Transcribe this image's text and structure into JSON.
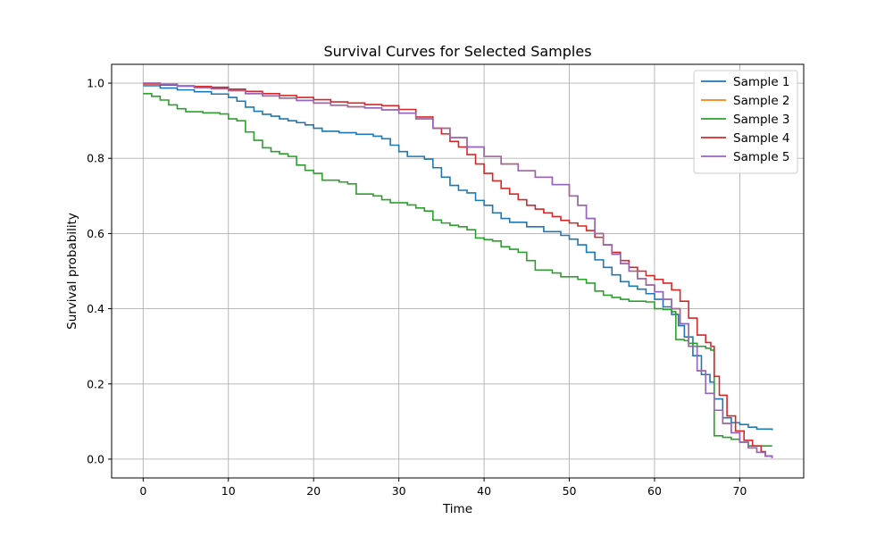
{
  "chart_data": {
    "type": "line",
    "step": true,
    "title": "Survival Curves for Selected Samples",
    "xlabel": "Time",
    "ylabel": "Survival probability",
    "xlim": [
      -3.7,
      77.5
    ],
    "ylim": [
      -0.05,
      1.05
    ],
    "xticks": [
      0,
      10,
      20,
      30,
      40,
      50,
      60,
      70
    ],
    "yticks": [
      0.0,
      0.2,
      0.4,
      0.6,
      0.8,
      1.0
    ],
    "ytick_labels": [
      "0.0",
      "0.2",
      "0.4",
      "0.6",
      "0.8",
      "1.0"
    ],
    "grid": true,
    "legend": "top-right",
    "series": [
      {
        "name": "Sample 1",
        "color": "#1f77b4",
        "points": [
          [
            0,
            0.993
          ],
          [
            2,
            0.987
          ],
          [
            4,
            0.982
          ],
          [
            6,
            0.977
          ],
          [
            8,
            0.971
          ],
          [
            10,
            0.962
          ],
          [
            11,
            0.952
          ],
          [
            12,
            0.936
          ],
          [
            13,
            0.925
          ],
          [
            14,
            0.917
          ],
          [
            15,
            0.912
          ],
          [
            16,
            0.905
          ],
          [
            17,
            0.9
          ],
          [
            18,
            0.895
          ],
          [
            19,
            0.889
          ],
          [
            20,
            0.88
          ],
          [
            21,
            0.872
          ],
          [
            23,
            0.868
          ],
          [
            25,
            0.864
          ],
          [
            27,
            0.859
          ],
          [
            28,
            0.852
          ],
          [
            29,
            0.835
          ],
          [
            30,
            0.818
          ],
          [
            31,
            0.805
          ],
          [
            33,
            0.798
          ],
          [
            34,
            0.775
          ],
          [
            35,
            0.75
          ],
          [
            36,
            0.728
          ],
          [
            37,
            0.715
          ],
          [
            38,
            0.708
          ],
          [
            39,
            0.688
          ],
          [
            40,
            0.675
          ],
          [
            41,
            0.655
          ],
          [
            42,
            0.64
          ],
          [
            43,
            0.63
          ],
          [
            45,
            0.618
          ],
          [
            47,
            0.605
          ],
          [
            49,
            0.595
          ],
          [
            50,
            0.585
          ],
          [
            51,
            0.57
          ],
          [
            52,
            0.55
          ],
          [
            53,
            0.53
          ],
          [
            54,
            0.51
          ],
          [
            55,
            0.49
          ],
          [
            56,
            0.472
          ],
          [
            57,
            0.46
          ],
          [
            58,
            0.452
          ],
          [
            59,
            0.44
          ],
          [
            60,
            0.425
          ],
          [
            61,
            0.405
          ],
          [
            62,
            0.385
          ],
          [
            62.8,
            0.355
          ],
          [
            63.5,
            0.325
          ],
          [
            64.5,
            0.275
          ],
          [
            65.5,
            0.225
          ],
          [
            66.5,
            0.205
          ],
          [
            67,
            0.16
          ],
          [
            68,
            0.11
          ],
          [
            69,
            0.097
          ],
          [
            70,
            0.092
          ],
          [
            71,
            0.085
          ],
          [
            72,
            0.08
          ],
          [
            73.8,
            0.077
          ]
        ]
      },
      {
        "name": "Sample 2",
        "color": "#ff7f0e",
        "points": [
          [
            0,
            1.0
          ],
          [
            2,
            0.997
          ],
          [
            4,
            0.992
          ],
          [
            6,
            0.988
          ],
          [
            8,
            0.985
          ],
          [
            10,
            0.98
          ],
          [
            12,
            0.972
          ],
          [
            14,
            0.966
          ],
          [
            16,
            0.96
          ],
          [
            18,
            0.954
          ],
          [
            20,
            0.947
          ],
          [
            22,
            0.941
          ],
          [
            24,
            0.937
          ],
          [
            26,
            0.934
          ],
          [
            28,
            0.929
          ],
          [
            30,
            0.92
          ],
          [
            32,
            0.905
          ],
          [
            34,
            0.88
          ],
          [
            36,
            0.855
          ],
          [
            38,
            0.83
          ],
          [
            40,
            0.805
          ],
          [
            42,
            0.785
          ],
          [
            44,
            0.767
          ],
          [
            46,
            0.75
          ],
          [
            48,
            0.73
          ],
          [
            50,
            0.7
          ],
          [
            51,
            0.675
          ],
          [
            52,
            0.64
          ],
          [
            53,
            0.6
          ],
          [
            54,
            0.57
          ],
          [
            55,
            0.545
          ],
          [
            56,
            0.52
          ],
          [
            57,
            0.5
          ],
          [
            58,
            0.48
          ],
          [
            59,
            0.463
          ],
          [
            60,
            0.445
          ],
          [
            61,
            0.425
          ],
          [
            62,
            0.4
          ],
          [
            63,
            0.36
          ],
          [
            64,
            0.3
          ],
          [
            65,
            0.235
          ],
          [
            66,
            0.175
          ],
          [
            67,
            0.13
          ],
          [
            68,
            0.095
          ],
          [
            69,
            0.07
          ],
          [
            70,
            0.045
          ],
          [
            71,
            0.03
          ],
          [
            72,
            0.018
          ],
          [
            73,
            0.008
          ],
          [
            73.8,
            0.003
          ]
        ]
      },
      {
        "name": "Sample 3",
        "color": "#2ca02c",
        "points": [
          [
            0,
            0.972
          ],
          [
            1,
            0.965
          ],
          [
            2,
            0.955
          ],
          [
            3,
            0.942
          ],
          [
            4,
            0.932
          ],
          [
            5,
            0.924
          ],
          [
            7,
            0.921
          ],
          [
            9,
            0.918
          ],
          [
            10,
            0.905
          ],
          [
            11,
            0.9
          ],
          [
            12,
            0.87
          ],
          [
            13,
            0.848
          ],
          [
            14,
            0.828
          ],
          [
            15,
            0.818
          ],
          [
            16,
            0.812
          ],
          [
            17,
            0.805
          ],
          [
            18,
            0.782
          ],
          [
            19,
            0.768
          ],
          [
            20,
            0.76
          ],
          [
            21,
            0.742
          ],
          [
            23,
            0.737
          ],
          [
            24,
            0.732
          ],
          [
            25,
            0.705
          ],
          [
            27,
            0.7
          ],
          [
            28,
            0.69
          ],
          [
            29,
            0.682
          ],
          [
            31,
            0.676
          ],
          [
            32,
            0.668
          ],
          [
            33,
            0.66
          ],
          [
            34,
            0.636
          ],
          [
            35,
            0.628
          ],
          [
            36,
            0.622
          ],
          [
            37,
            0.618
          ],
          [
            38,
            0.61
          ],
          [
            39,
            0.588
          ],
          [
            40,
            0.584
          ],
          [
            41,
            0.58
          ],
          [
            42,
            0.565
          ],
          [
            43,
            0.558
          ],
          [
            44,
            0.55
          ],
          [
            45,
            0.528
          ],
          [
            46,
            0.503
          ],
          [
            48,
            0.495
          ],
          [
            49,
            0.485
          ],
          [
            51,
            0.478
          ],
          [
            52,
            0.468
          ],
          [
            53,
            0.447
          ],
          [
            54,
            0.436
          ],
          [
            55,
            0.43
          ],
          [
            56,
            0.425
          ],
          [
            57,
            0.42
          ],
          [
            59,
            0.418
          ],
          [
            60,
            0.4
          ],
          [
            61,
            0.398
          ],
          [
            62,
            0.392
          ],
          [
            62.5,
            0.318
          ],
          [
            63.5,
            0.315
          ],
          [
            64,
            0.308
          ],
          [
            65,
            0.3
          ],
          [
            66,
            0.295
          ],
          [
            66.6,
            0.29
          ],
          [
            67,
            0.062
          ],
          [
            68,
            0.058
          ],
          [
            69,
            0.053
          ],
          [
            70,
            0.045
          ],
          [
            71,
            0.035
          ],
          [
            73.8,
            0.035
          ]
        ]
      },
      {
        "name": "Sample 4",
        "color": "#d62728",
        "points": [
          [
            0,
            0.998
          ],
          [
            2,
            0.995
          ],
          [
            4,
            0.993
          ],
          [
            6,
            0.991
          ],
          [
            8,
            0.989
          ],
          [
            10,
            0.984
          ],
          [
            12,
            0.978
          ],
          [
            14,
            0.972
          ],
          [
            16,
            0.967
          ],
          [
            18,
            0.962
          ],
          [
            20,
            0.956
          ],
          [
            22,
            0.95
          ],
          [
            24,
            0.947
          ],
          [
            26,
            0.943
          ],
          [
            28,
            0.94
          ],
          [
            30,
            0.93
          ],
          [
            32,
            0.91
          ],
          [
            34,
            0.88
          ],
          [
            35,
            0.865
          ],
          [
            36,
            0.845
          ],
          [
            37,
            0.83
          ],
          [
            38,
            0.81
          ],
          [
            39,
            0.785
          ],
          [
            40,
            0.76
          ],
          [
            41,
            0.74
          ],
          [
            42,
            0.72
          ],
          [
            43,
            0.705
          ],
          [
            44,
            0.69
          ],
          [
            45,
            0.675
          ],
          [
            46,
            0.665
          ],
          [
            47,
            0.655
          ],
          [
            48,
            0.645
          ],
          [
            49,
            0.635
          ],
          [
            50,
            0.628
          ],
          [
            51,
            0.62
          ],
          [
            52,
            0.608
          ],
          [
            53,
            0.59
          ],
          [
            54,
            0.57
          ],
          [
            55,
            0.55
          ],
          [
            56,
            0.528
          ],
          [
            57,
            0.51
          ],
          [
            58,
            0.5
          ],
          [
            59,
            0.488
          ],
          [
            60,
            0.478
          ],
          [
            61,
            0.468
          ],
          [
            62,
            0.45
          ],
          [
            63,
            0.42
          ],
          [
            64,
            0.375
          ],
          [
            65,
            0.33
          ],
          [
            66,
            0.31
          ],
          [
            66.6,
            0.3
          ],
          [
            67,
            0.22
          ],
          [
            67.6,
            0.17
          ],
          [
            68.5,
            0.115
          ],
          [
            69.5,
            0.075
          ],
          [
            70.5,
            0.05
          ],
          [
            71.5,
            0.035
          ],
          [
            72.5,
            0.02
          ],
          [
            73,
            0.008
          ],
          [
            73.8,
            0.003
          ]
        ]
      },
      {
        "name": "Sample 5",
        "color": "#9467bd",
        "points": [
          [
            0,
            1.0
          ],
          [
            2,
            0.997
          ],
          [
            4,
            0.992
          ],
          [
            6,
            0.988
          ],
          [
            8,
            0.985
          ],
          [
            10,
            0.98
          ],
          [
            12,
            0.972
          ],
          [
            14,
            0.966
          ],
          [
            16,
            0.96
          ],
          [
            18,
            0.954
          ],
          [
            20,
            0.947
          ],
          [
            22,
            0.941
          ],
          [
            24,
            0.937
          ],
          [
            26,
            0.934
          ],
          [
            28,
            0.929
          ],
          [
            30,
            0.92
          ],
          [
            32,
            0.905
          ],
          [
            34,
            0.88
          ],
          [
            36,
            0.855
          ],
          [
            38,
            0.83
          ],
          [
            40,
            0.805
          ],
          [
            42,
            0.785
          ],
          [
            44,
            0.767
          ],
          [
            46,
            0.75
          ],
          [
            48,
            0.73
          ],
          [
            50,
            0.7
          ],
          [
            51,
            0.675
          ],
          [
            52,
            0.64
          ],
          [
            53,
            0.6
          ],
          [
            54,
            0.57
          ],
          [
            55,
            0.545
          ],
          [
            56,
            0.52
          ],
          [
            57,
            0.5
          ],
          [
            58,
            0.48
          ],
          [
            59,
            0.463
          ],
          [
            60,
            0.445
          ],
          [
            61,
            0.425
          ],
          [
            62,
            0.4
          ],
          [
            63,
            0.36
          ],
          [
            64,
            0.3
          ],
          [
            65,
            0.235
          ],
          [
            66,
            0.175
          ],
          [
            67,
            0.13
          ],
          [
            68,
            0.095
          ],
          [
            69,
            0.07
          ],
          [
            70,
            0.045
          ],
          [
            71,
            0.03
          ],
          [
            72,
            0.018
          ],
          [
            73,
            0.008
          ],
          [
            73.8,
            0.003
          ]
        ]
      }
    ]
  }
}
